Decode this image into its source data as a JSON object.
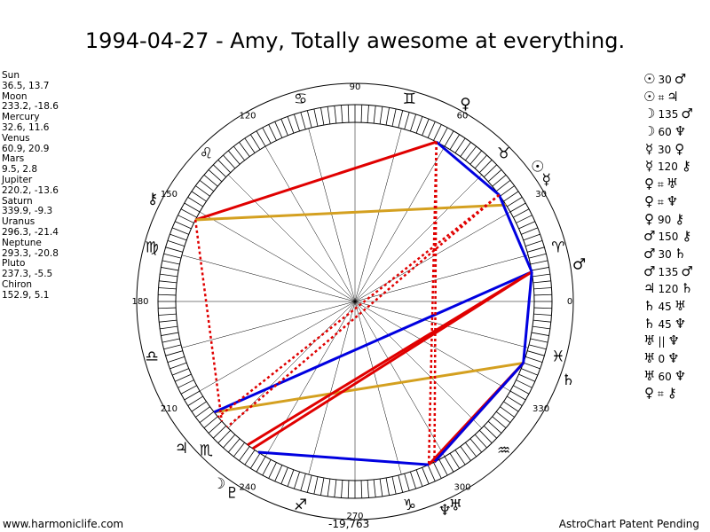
{
  "title": "1994-04-27 - Amy, Totally awesome at everything.",
  "planets": [
    {
      "name": "Sun",
      "coords": "36.5, 13.7"
    },
    {
      "name": "Moon",
      "coords": "233.2, -18.6"
    },
    {
      "name": "Mercury",
      "coords": "32.6, 11.6"
    },
    {
      "name": "Venus",
      "coords": "60.9, 20.9"
    },
    {
      "name": "Mars",
      "coords": "9.5, 2.8"
    },
    {
      "name": "Jupiter",
      "coords": "220.2, -13.6"
    },
    {
      "name": "Saturn",
      "coords": "339.9, -9.3"
    },
    {
      "name": "Uranus",
      "coords": "296.3, -21.4"
    },
    {
      "name": "Neptune",
      "coords": "293.3, -20.8"
    },
    {
      "name": "Pluto",
      "coords": "237.3, -5.5"
    },
    {
      "name": "Chiron",
      "coords": "152.9, 5.1"
    }
  ],
  "aspects": [
    {
      "p1": "☉",
      "angle": "30",
      "p2": "♂"
    },
    {
      "p1": "☉",
      "angle": "⌗",
      "p2": "♃"
    },
    {
      "p1": "☽",
      "angle": "135",
      "p2": "♂"
    },
    {
      "p1": "☽",
      "angle": "60",
      "p2": "♆"
    },
    {
      "p1": "☿",
      "angle": "30",
      "p2": "♀"
    },
    {
      "p1": "☿",
      "angle": "120",
      "p2": "⚷"
    },
    {
      "p1": "♀",
      "angle": "⌗",
      "p2": "♅"
    },
    {
      "p1": "♀",
      "angle": "⌗",
      "p2": "♆"
    },
    {
      "p1": "♀",
      "angle": "90",
      "p2": "⚷"
    },
    {
      "p1": "♂",
      "angle": "150",
      "p2": "⚷"
    },
    {
      "p1": "♂",
      "angle": "30",
      "p2": "♄"
    },
    {
      "p1": "♂",
      "angle": "135",
      "p2": "♂"
    },
    {
      "p1": "♃",
      "angle": "120",
      "p2": "♄"
    },
    {
      "p1": "♄",
      "angle": "45",
      "p2": "♅"
    },
    {
      "p1": "♄",
      "angle": "45",
      "p2": "♆"
    },
    {
      "p1": "♅",
      "angle": "||",
      "p2": "♆"
    },
    {
      "p1": "♅",
      "angle": "0",
      "p2": "♆"
    },
    {
      "p1": "♅",
      "angle": "60",
      "p2": "♆"
    },
    {
      "p1": "♀",
      "angle": "⌗",
      "p2": "⚷"
    }
  ],
  "footer": {
    "left": "www.harmoniclife.com",
    "middle": "-19,763",
    "right": "AstroChart Patent Pending"
  },
  "chart_data": {
    "type": "radial_wheel",
    "degree_labels": [
      "0",
      "30",
      "60",
      "90",
      "120",
      "150",
      "180",
      "210",
      "240",
      "270",
      "300",
      "330"
    ],
    "zodiac_signs": [
      {
        "symbol": "♈",
        "longitude": 15
      },
      {
        "symbol": "♉",
        "longitude": 45
      },
      {
        "symbol": "♊",
        "longitude": 75
      },
      {
        "symbol": "♋",
        "longitude": 105
      },
      {
        "symbol": "♌",
        "longitude": 135
      },
      {
        "symbol": "♍",
        "longitude": 165
      },
      {
        "symbol": "♎",
        "longitude": 195
      },
      {
        "symbol": "♏",
        "longitude": 225
      },
      {
        "symbol": "♐",
        "longitude": 255
      },
      {
        "symbol": "♑",
        "longitude": 285
      },
      {
        "symbol": "♒",
        "longitude": 315
      },
      {
        "symbol": "♓",
        "longitude": 345
      }
    ],
    "bodies": [
      {
        "key": "sun",
        "symbol": "☉",
        "longitude": 36.5
      },
      {
        "key": "moon",
        "symbol": "☽",
        "longitude": 233.2
      },
      {
        "key": "mercury",
        "symbol": "☿",
        "longitude": 32.6
      },
      {
        "key": "venus",
        "symbol": "♀",
        "longitude": 60.9
      },
      {
        "key": "mars",
        "symbol": "♂",
        "longitude": 9.5
      },
      {
        "key": "jupiter",
        "symbol": "♃",
        "longitude": 220.2
      },
      {
        "key": "saturn",
        "symbol": "♄",
        "longitude": 339.9
      },
      {
        "key": "uranus",
        "symbol": "♅",
        "longitude": 296.3
      },
      {
        "key": "neptune",
        "symbol": "♆",
        "longitude": 293.3
      },
      {
        "key": "pluto",
        "symbol": "♇",
        "longitude": 237.3
      },
      {
        "key": "chiron",
        "symbol": "⚷",
        "longitude": 152.9
      }
    ],
    "aspect_lines": [
      {
        "from": 152.9,
        "to": 63.0,
        "color": "#e00000",
        "style": "solid"
      },
      {
        "from": 152.9,
        "to": 32.6,
        "color": "#d4a020",
        "style": "solid"
      },
      {
        "from": 339.9,
        "to": 218.2,
        "color": "#d4a020",
        "style": "solid"
      },
      {
        "from": 9.5,
        "to": 218.2,
        "color": "#0000e0",
        "style": "solid"
      },
      {
        "from": 9.5,
        "to": 233.2,
        "color": "#e00000",
        "style": "solid"
      },
      {
        "from": 9.5,
        "to": 235.2,
        "color": "#e00000",
        "style": "solid"
      },
      {
        "from": 339.9,
        "to": 296.3,
        "color": "#e00000",
        "style": "solid"
      },
      {
        "from": 339.9,
        "to": 294.3,
        "color": "#e00000",
        "style": "solid"
      },
      {
        "from": 63.0,
        "to": 36.5,
        "color": "#0000e0",
        "style": "solid"
      },
      {
        "from": 36.5,
        "to": 9.5,
        "color": "#0000e0",
        "style": "solid"
      },
      {
        "from": 9.5,
        "to": 339.9,
        "color": "#0000e0",
        "style": "solid"
      },
      {
        "from": 339.9,
        "to": 296.3,
        "color": "#0000e0",
        "style": "solid"
      },
      {
        "from": 294.3,
        "to": 237.3,
        "color": "#0000e0",
        "style": "solid"
      },
      {
        "from": 63.0,
        "to": 294.3,
        "color": "#e00000",
        "style": "dotted"
      },
      {
        "from": 63.0,
        "to": 296.3,
        "color": "#e00000",
        "style": "dotted"
      },
      {
        "from": 152.9,
        "to": 222.0,
        "color": "#e00000",
        "style": "dotted"
      },
      {
        "from": 36.5,
        "to": 224.5,
        "color": "#e00000",
        "style": "dotted"
      },
      {
        "from": 36.5,
        "to": 220.2,
        "color": "#e00000",
        "style": "dotted"
      }
    ]
  }
}
